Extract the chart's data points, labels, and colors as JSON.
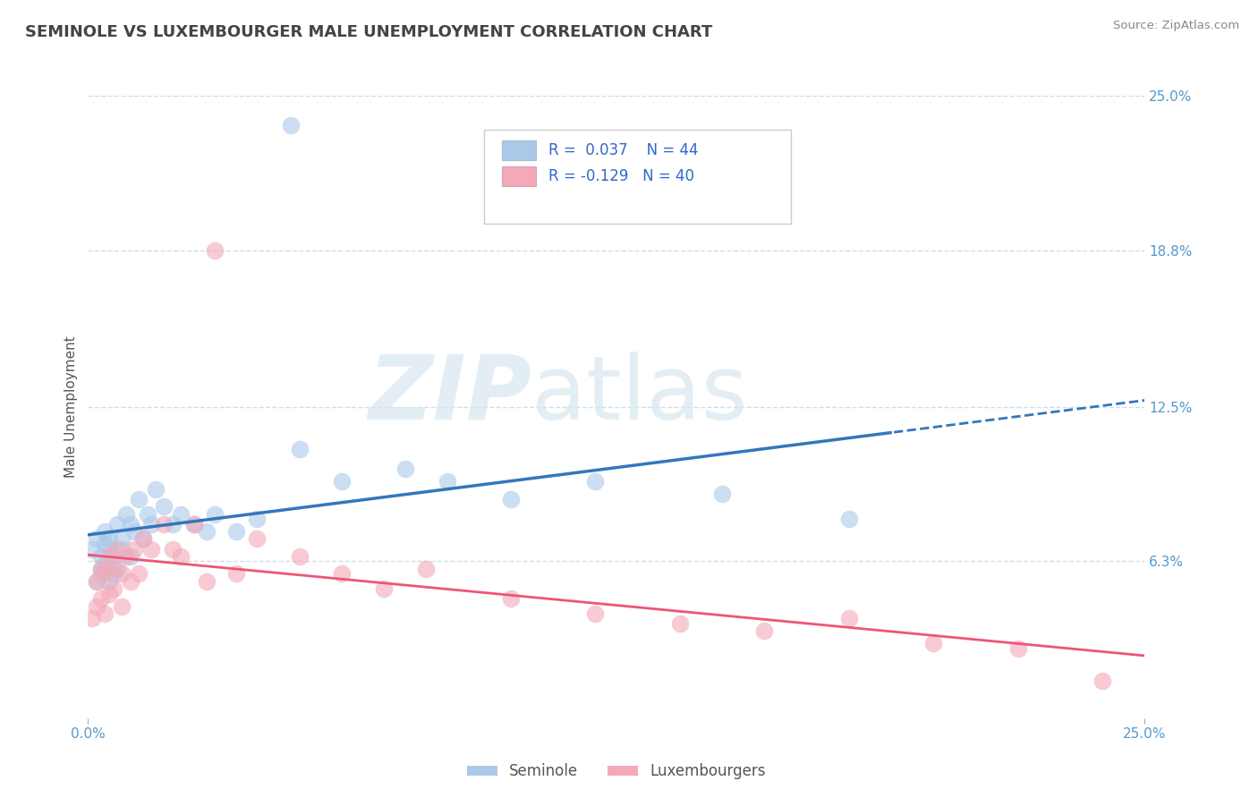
{
  "title": "SEMINOLE VS LUXEMBOURGER MALE UNEMPLOYMENT CORRELATION CHART",
  "source": "Source: ZipAtlas.com",
  "ylabel": "Male Unemployment",
  "watermark_zip": "ZIP",
  "watermark_atlas": "atlas",
  "xlim": [
    0.0,
    0.25
  ],
  "ylim": [
    0.0,
    0.25
  ],
  "xtick_labels": [
    "0.0%",
    "25.0%"
  ],
  "ytick_labels": [
    "6.3%",
    "12.5%",
    "18.8%",
    "25.0%"
  ],
  "ytick_values": [
    0.063,
    0.125,
    0.188,
    0.25
  ],
  "gridline_color": "#d0dce8",
  "background_color": "#ffffff",
  "seminole_color": "#aac8e8",
  "luxembourger_color": "#f4a8b8",
  "seminole_line_color": "#3377bb",
  "luxembourger_line_color": "#ee5577",
  "legend_r1": "R =  0.037",
  "legend_n1": "N = 44",
  "legend_r2": "R = -0.129",
  "legend_n2": "N = 40",
  "seminole_x": [
    0.001,
    0.002,
    0.002,
    0.003,
    0.003,
    0.003,
    0.004,
    0.004,
    0.004,
    0.005,
    0.005,
    0.005,
    0.006,
    0.006,
    0.007,
    0.007,
    0.008,
    0.008,
    0.009,
    0.01,
    0.01,
    0.011,
    0.012,
    0.013,
    0.014,
    0.015,
    0.016,
    0.018,
    0.02,
    0.022,
    0.025,
    0.028,
    0.03,
    0.035,
    0.04,
    0.05,
    0.06,
    0.075,
    0.085,
    0.1,
    0.12,
    0.15,
    0.18,
    0.048
  ],
  "seminole_y": [
    0.068,
    0.055,
    0.072,
    0.06,
    0.065,
    0.058,
    0.07,
    0.062,
    0.075,
    0.055,
    0.068,
    0.072,
    0.058,
    0.065,
    0.078,
    0.06,
    0.072,
    0.068,
    0.082,
    0.065,
    0.078,
    0.075,
    0.088,
    0.072,
    0.082,
    0.078,
    0.092,
    0.085,
    0.078,
    0.082,
    0.078,
    0.075,
    0.082,
    0.075,
    0.08,
    0.108,
    0.095,
    0.1,
    0.095,
    0.088,
    0.095,
    0.09,
    0.08,
    0.238
  ],
  "luxembourger_x": [
    0.001,
    0.002,
    0.002,
    0.003,
    0.003,
    0.004,
    0.004,
    0.005,
    0.005,
    0.006,
    0.006,
    0.007,
    0.008,
    0.008,
    0.009,
    0.01,
    0.011,
    0.012,
    0.013,
    0.015,
    0.018,
    0.02,
    0.022,
    0.025,
    0.028,
    0.03,
    0.035,
    0.04,
    0.05,
    0.06,
    0.07,
    0.08,
    0.1,
    0.12,
    0.14,
    0.16,
    0.18,
    0.2,
    0.22,
    0.24
  ],
  "luxembourger_y": [
    0.04,
    0.055,
    0.045,
    0.06,
    0.048,
    0.058,
    0.042,
    0.065,
    0.05,
    0.06,
    0.052,
    0.068,
    0.058,
    0.045,
    0.065,
    0.055,
    0.068,
    0.058,
    0.072,
    0.068,
    0.078,
    0.068,
    0.065,
    0.078,
    0.055,
    0.188,
    0.058,
    0.072,
    0.065,
    0.058,
    0.052,
    0.06,
    0.048,
    0.042,
    0.038,
    0.035,
    0.04,
    0.03,
    0.028,
    0.015
  ],
  "title_color": "#444444",
  "axis_label_color": "#555555",
  "tick_label_color": "#5599cc",
  "legend_text_color": "#3366cc"
}
